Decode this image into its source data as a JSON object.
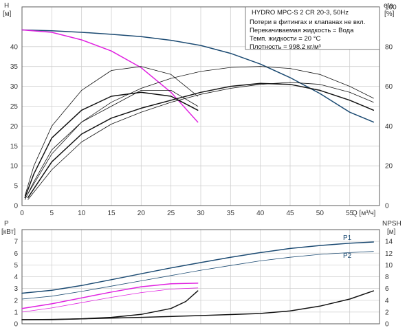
{
  "colors": {
    "frame": "#5b5b5b",
    "grid": "#cfcfcf",
    "navy": "#1b4a72",
    "magenta": "#e020e0",
    "black": "#111111",
    "text": "#333333"
  },
  "chart_data": [
    {
      "type": "line",
      "title": "HYDRO MPC-S 2 CR 20-3, 50Hz",
      "notes": [
        "Потери в фитингах и клапанах не вкл.",
        "Перекачиваемая жидкость = Вода",
        "Темп. жидкости = 20 °C",
        "Плотность = 998.2 кг/м³"
      ],
      "grid": true,
      "xlabel": "Q [м³/ч]",
      "xlim": [
        0,
        60
      ],
      "x_ticks": [
        0,
        5,
        10,
        15,
        20,
        25,
        30,
        35,
        40,
        45,
        50,
        55
      ],
      "ylabel": "H",
      "ylabel_unit": "[м]",
      "ylim": [
        0,
        50
      ],
      "y_ticks": [
        0,
        5,
        10,
        15,
        20,
        25,
        30,
        35,
        40
      ],
      "y2label": "eta",
      "y2label_unit": "[%]",
      "y2lim": [
        0,
        100
      ],
      "y2_ticks": [
        0,
        20,
        40,
        60,
        80,
        100
      ],
      "series": [
        {
          "axis": "y",
          "color": "navy",
          "width": 1.5,
          "x": [
            0,
            5,
            10,
            15,
            20,
            25,
            30,
            35,
            40,
            45,
            50,
            55,
            59
          ],
          "values": [
            44.2,
            44,
            43.6,
            43.1,
            42.5,
            41.6,
            40.3,
            38.3,
            35.6,
            32.2,
            28.2,
            23.5,
            21
          ]
        },
        {
          "axis": "y",
          "color": "magenta",
          "width": 1.5,
          "x": [
            0,
            5,
            10,
            15,
            20,
            25,
            29.5
          ],
          "values": [
            44.2,
            43.6,
            41.7,
            38.9,
            34.7,
            28.5,
            21
          ]
        },
        {
          "axis": "y2",
          "color": "black",
          "width": 1.5,
          "x": [
            0.5,
            2,
            5,
            10,
            15,
            20,
            25,
            29.5
          ],
          "values": [
            4,
            16,
            34,
            48,
            55,
            57,
            55,
            48
          ]
        },
        {
          "axis": "y2",
          "color": "black",
          "width": 0.8,
          "x": [
            0.5,
            2,
            5,
            10,
            15,
            20,
            25,
            29.5
          ],
          "values": [
            5,
            20,
            40,
            58,
            68,
            70,
            66,
            55
          ]
        },
        {
          "axis": "y2",
          "color": "black",
          "width": 0.8,
          "x": [
            0.5,
            2,
            5,
            10,
            15,
            20,
            25,
            29.5
          ],
          "values": [
            3,
            12,
            28,
            42,
            50,
            58,
            58,
            50
          ]
        },
        {
          "axis": "y2",
          "color": "black",
          "width": 1.5,
          "x": [
            1,
            5,
            10,
            15,
            20,
            25,
            30,
            35,
            40,
            45,
            50,
            55,
            59
          ],
          "values": [
            4,
            22,
            36,
            44,
            49,
            53,
            57,
            60,
            61.5,
            61,
            58,
            53,
            48
          ]
        },
        {
          "axis": "y2",
          "color": "black",
          "width": 0.8,
          "x": [
            1,
            5,
            10,
            15,
            20,
            25,
            30,
            35,
            40,
            45,
            50,
            55,
            59
          ],
          "values": [
            6,
            26,
            42,
            52,
            59,
            64,
            67.5,
            69.5,
            70,
            69,
            66,
            60,
            54
          ]
        },
        {
          "axis": "y2",
          "color": "black",
          "width": 0.8,
          "x": [
            1,
            5,
            10,
            15,
            20,
            25,
            30,
            35,
            40,
            45,
            50,
            55,
            59
          ],
          "values": [
            3,
            18,
            32,
            41,
            47,
            52,
            56,
            59,
            61,
            62,
            61,
            57,
            52
          ]
        }
      ]
    },
    {
      "type": "line",
      "grid": true,
      "xlim": [
        0,
        60
      ],
      "x_ticks": [
        0,
        5,
        10,
        15,
        20,
        25,
        30,
        35,
        40,
        45,
        50,
        55
      ],
      "ylabel": "P",
      "ylabel_unit": "[кВт]",
      "ylim": [
        0,
        8
      ],
      "y_ticks": [
        0,
        1,
        2,
        3,
        4,
        5,
        6,
        7
      ],
      "y2label": "NPSH",
      "y2label_unit": "[м]",
      "y2lim": [
        0,
        16
      ],
      "y2_ticks": [
        0,
        2,
        4,
        6,
        8,
        10,
        12,
        14
      ],
      "series": [
        {
          "name": "P1",
          "axis": "y",
          "color": "navy",
          "width": 1.5,
          "x": [
            0,
            5,
            10,
            15,
            20,
            25,
            30,
            35,
            40,
            45,
            50,
            55,
            59
          ],
          "values": [
            2.6,
            2.85,
            3.25,
            3.75,
            4.25,
            4.75,
            5.2,
            5.65,
            6.05,
            6.4,
            6.65,
            6.85,
            6.95
          ]
        },
        {
          "name": "P2",
          "axis": "y",
          "color": "navy",
          "width": 0.8,
          "x": [
            0,
            5,
            10,
            15,
            20,
            25,
            30,
            35,
            40,
            45,
            50,
            55,
            59
          ],
          "values": [
            2.1,
            2.35,
            2.75,
            3.2,
            3.65,
            4.1,
            4.55,
            4.95,
            5.35,
            5.65,
            5.9,
            6.05,
            6.15
          ]
        },
        {
          "axis": "y",
          "color": "magenta",
          "width": 1.5,
          "x": [
            0,
            5,
            10,
            15,
            20,
            25,
            29.5
          ],
          "values": [
            1.3,
            1.7,
            2.2,
            2.7,
            3.15,
            3.4,
            3.45
          ]
        },
        {
          "axis": "y",
          "color": "magenta",
          "width": 0.8,
          "x": [
            0,
            5,
            10,
            15,
            20,
            25,
            29.5
          ],
          "values": [
            1.0,
            1.35,
            1.8,
            2.25,
            2.65,
            2.95,
            3.05
          ]
        },
        {
          "axis": "y2",
          "color": "black",
          "width": 1.5,
          "x": [
            0,
            5,
            10,
            15,
            20,
            25,
            27.5,
            29.5
          ],
          "values": [
            0.7,
            0.7,
            0.85,
            1.1,
            1.6,
            2.6,
            3.8,
            5.6
          ]
        },
        {
          "axis": "y2",
          "color": "black",
          "width": 1.5,
          "x": [
            0,
            5,
            10,
            20,
            30,
            40,
            45,
            50,
            55,
            59
          ],
          "values": [
            0.7,
            0.75,
            0.85,
            1.1,
            1.4,
            1.75,
            2.2,
            3.0,
            4.2,
            5.6
          ]
        }
      ]
    }
  ]
}
